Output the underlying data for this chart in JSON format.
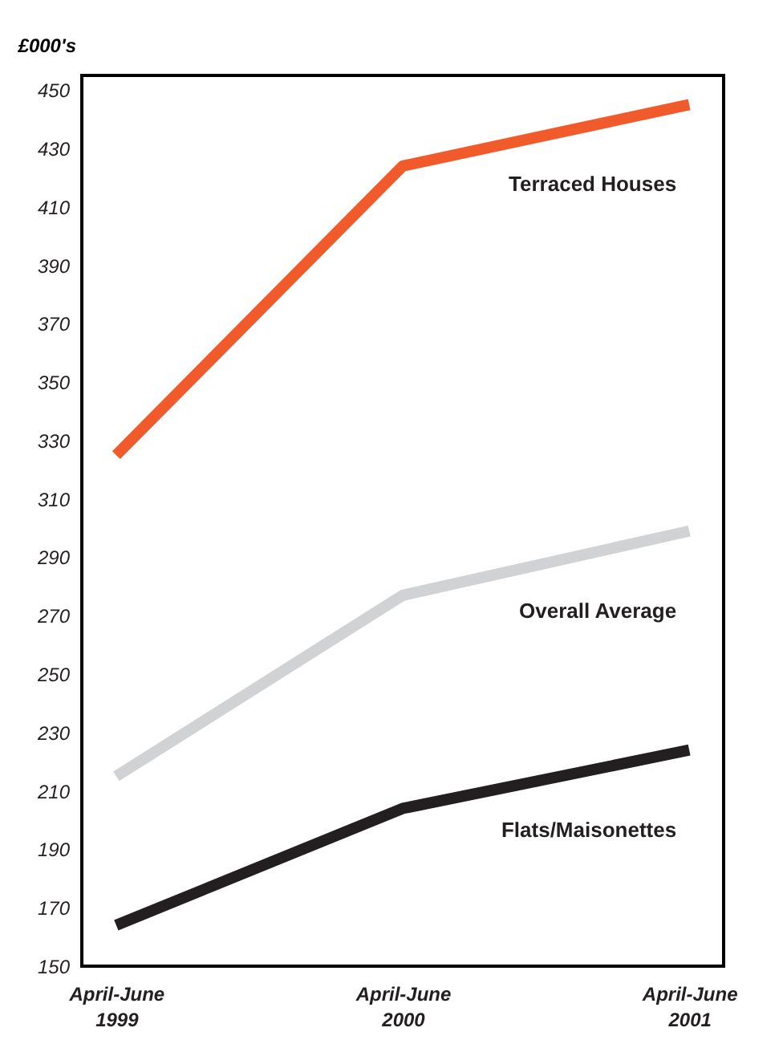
{
  "chart_data": {
    "type": "line",
    "ylabel": "£000's",
    "categories": [
      "April-June 1999",
      "April-June 2000",
      "April-June 2001"
    ],
    "series": [
      {
        "name": "Terraced Houses",
        "color": "#f15a2b",
        "values": [
          325,
          424,
          445
        ]
      },
      {
        "name": "Overall Average",
        "color": "#d0d2d3",
        "values": [
          215,
          277,
          299
        ]
      },
      {
        "name": "Flats/Maisonettes",
        "color": "#231f20",
        "values": [
          164,
          204,
          224
        ]
      }
    ],
    "ylim": [
      150,
      455
    ],
    "yticks": [
      150,
      170,
      190,
      210,
      230,
      250,
      270,
      290,
      310,
      330,
      350,
      370,
      390,
      410,
      430,
      450
    ],
    "grid": false,
    "legend": false,
    "marker": "none",
    "line_style": "solid"
  }
}
